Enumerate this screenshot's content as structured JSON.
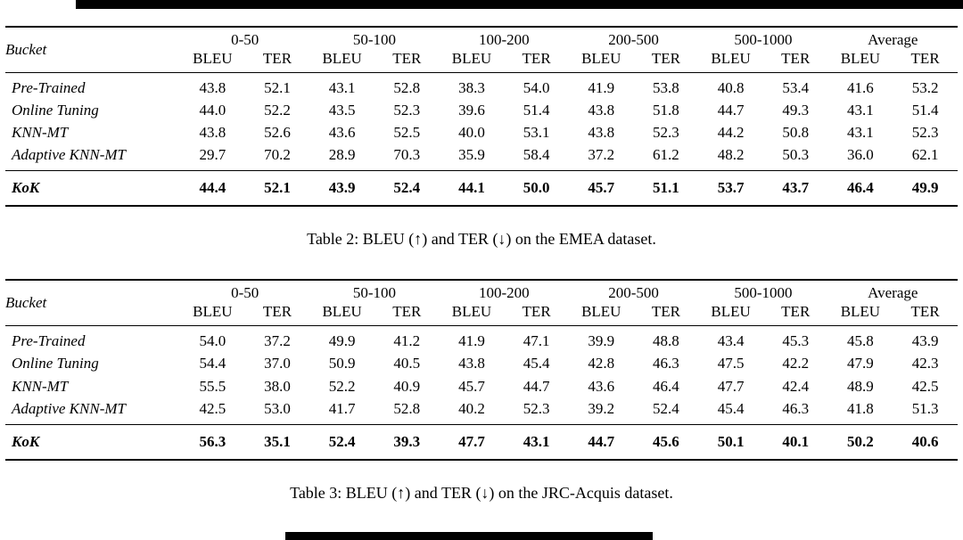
{
  "decorations": {
    "top_bar_color": "#000000",
    "bottom_bar_color": "#000000"
  },
  "tables": [
    {
      "dataset": "EMEA",
      "bucket_header": "Bucket",
      "groups": [
        "0-50",
        "50-100",
        "100-200",
        "200-500",
        "500-1000",
        "Average"
      ],
      "metrics": [
        "BLEU",
        "TER"
      ],
      "rows": [
        {
          "label": "Pre-Trained",
          "values": [
            "43.8",
            "52.1",
            "43.1",
            "52.8",
            "38.3",
            "54.0",
            "41.9",
            "53.8",
            "40.8",
            "53.4",
            "41.6",
            "53.2"
          ],
          "bold_value_indices": [
            1
          ]
        },
        {
          "label": "Online Tuning",
          "values": [
            "44.0",
            "52.2",
            "43.5",
            "52.3",
            "39.6",
            "51.4",
            "43.8",
            "51.8",
            "44.7",
            "49.3",
            "43.1",
            "51.4"
          ]
        },
        {
          "label": "KNN-MT",
          "values": [
            "43.8",
            "52.6",
            "43.6",
            "52.5",
            "40.0",
            "53.1",
            "43.8",
            "52.3",
            "44.2",
            "50.8",
            "43.1",
            "52.3"
          ]
        },
        {
          "label": "Adaptive KNN-MT",
          "values": [
            "29.7",
            "70.2",
            "28.9",
            "70.3",
            "35.9",
            "58.4",
            "37.2",
            "61.2",
            "48.2",
            "50.3",
            "36.0",
            "62.1"
          ]
        }
      ],
      "highlight_row": {
        "label": "KoK",
        "values": [
          "44.4",
          "52.1",
          "43.9",
          "52.4",
          "44.1",
          "50.0",
          "45.7",
          "51.1",
          "53.7",
          "43.7",
          "46.4",
          "49.9"
        ],
        "bold": true
      },
      "caption": "Table 2: BLEU (↑) and TER (↓) on the EMEA dataset."
    },
    {
      "dataset": "JRC-Acquis",
      "bucket_header": "Bucket",
      "groups": [
        "0-50",
        "50-100",
        "100-200",
        "200-500",
        "500-1000",
        "Average"
      ],
      "metrics": [
        "BLEU",
        "TER"
      ],
      "rows": [
        {
          "label": "Pre-Trained",
          "values": [
            "54.0",
            "37.2",
            "49.9",
            "41.2",
            "41.9",
            "47.1",
            "39.9",
            "48.8",
            "43.4",
            "45.3",
            "45.8",
            "43.9"
          ]
        },
        {
          "label": "Online Tuning",
          "values": [
            "54.4",
            "37.0",
            "50.9",
            "40.5",
            "43.8",
            "45.4",
            "42.8",
            "46.3",
            "47.5",
            "42.2",
            "47.9",
            "42.3"
          ]
        },
        {
          "label": "KNN-MT",
          "values": [
            "55.5",
            "38.0",
            "52.2",
            "40.9",
            "45.7",
            "44.7",
            "43.6",
            "46.4",
            "47.7",
            "42.4",
            "48.9",
            "42.5"
          ]
        },
        {
          "label": "Adaptive KNN-MT",
          "values": [
            "42.5",
            "53.0",
            "41.7",
            "52.8",
            "40.2",
            "52.3",
            "39.2",
            "52.4",
            "45.4",
            "46.3",
            "41.8",
            "51.3"
          ]
        }
      ],
      "highlight_row": {
        "label": "KoK",
        "values": [
          "56.3",
          "35.1",
          "52.4",
          "39.3",
          "47.7",
          "43.1",
          "44.7",
          "45.6",
          "50.1",
          "40.1",
          "50.2",
          "40.6"
        ],
        "bold": true
      },
      "caption": "Table 3: BLEU (↑) and TER (↓) on the JRC-Acquis dataset."
    }
  ]
}
